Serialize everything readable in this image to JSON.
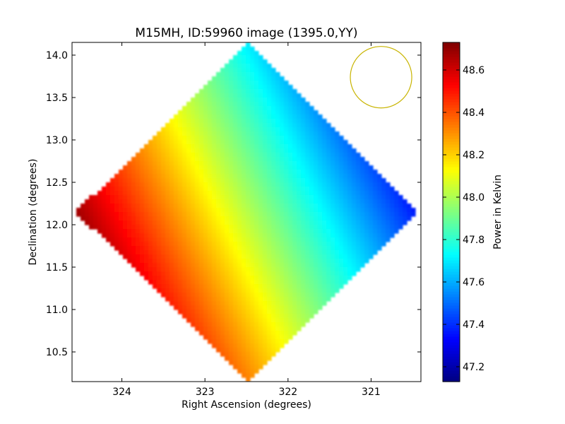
{
  "chart_data": {
    "type": "heatmap",
    "title": "M15MH, ID:59960 image (1395.0,YY)",
    "xlabel": "Right Ascension (degrees)",
    "ylabel": "Declination (degrees)",
    "colorbar_label": "Power in Kelvin",
    "colormap": "jet",
    "x_reversed": true,
    "xlim": [
      324.6,
      320.4
    ],
    "ylim": [
      10.15,
      14.15
    ],
    "x_ticks": [
      324,
      323,
      322,
      321
    ],
    "y_ticks": [
      10.5,
      11.0,
      11.5,
      12.0,
      12.5,
      13.0,
      13.5,
      14.0
    ],
    "x_tick_labels": [
      "324",
      "323",
      "322",
      "321"
    ],
    "y_tick_labels": [
      "10.5",
      "11.0",
      "11.5",
      "12.0",
      "12.5",
      "13.0",
      "13.5",
      "14.0"
    ],
    "colorbar_range": [
      47.13,
      48.73
    ],
    "colorbar_ticks": [
      47.2,
      47.4,
      47.6,
      47.8,
      48.0,
      48.2,
      48.4,
      48.6
    ],
    "colorbar_tick_labels": [
      "47.2",
      "47.4",
      "47.6",
      "47.8",
      "48.0",
      "48.2",
      "48.4",
      "48.6"
    ],
    "footprint": {
      "shape": "diamond",
      "corners_ra_dec": [
        [
          324.55,
          12.0
        ],
        [
          322.5,
          14.15
        ],
        [
          320.45,
          12.0
        ],
        [
          322.5,
          10.15
        ]
      ]
    },
    "gradient": {
      "low_value": 47.2,
      "high_value": 48.7,
      "low_corner_ra_dec": [
        320.6,
        13.5
      ],
      "high_corner_ra_dec": [
        324.4,
        11.7
      ]
    },
    "beam_circle": {
      "center_ra_dec": [
        320.88,
        13.74
      ],
      "radius_deg": 0.37,
      "color": "#c8b400"
    },
    "grid": false,
    "legend": "none"
  }
}
